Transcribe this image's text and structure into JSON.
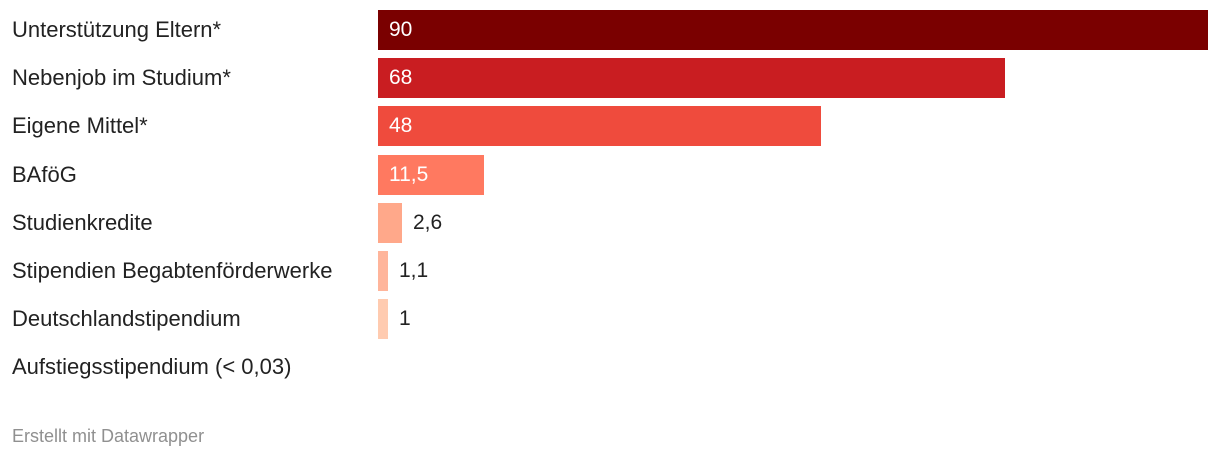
{
  "chart_data": {
    "type": "bar",
    "orientation": "horizontal",
    "categories": [
      "Unterstützung Eltern*",
      "Nebenjob im Studium*",
      "Eigene Mittel*",
      "BAföG",
      "Studienkredite",
      "Stipendien Begabtenförderwerke",
      "Deutschlandstipendium",
      "Aufstiegsstipendium (< 0,03)"
    ],
    "values": [
      90,
      68,
      48,
      11.5,
      2.6,
      1.1,
      1,
      null
    ],
    "value_labels": [
      "90",
      "68",
      "48",
      "11,5",
      "2,6",
      "1,1",
      "1",
      ""
    ],
    "colors": [
      "#7a0000",
      "#c91d21",
      "#ef4b3d",
      "#ff7960",
      "#ffa88a",
      "#ffb59b",
      "#ffcbb0",
      "#ffffff"
    ],
    "xlim": [
      0,
      90
    ],
    "grid": false,
    "legend": "none"
  },
  "footer": {
    "credit": "Erstellt mit Datawrapper"
  }
}
